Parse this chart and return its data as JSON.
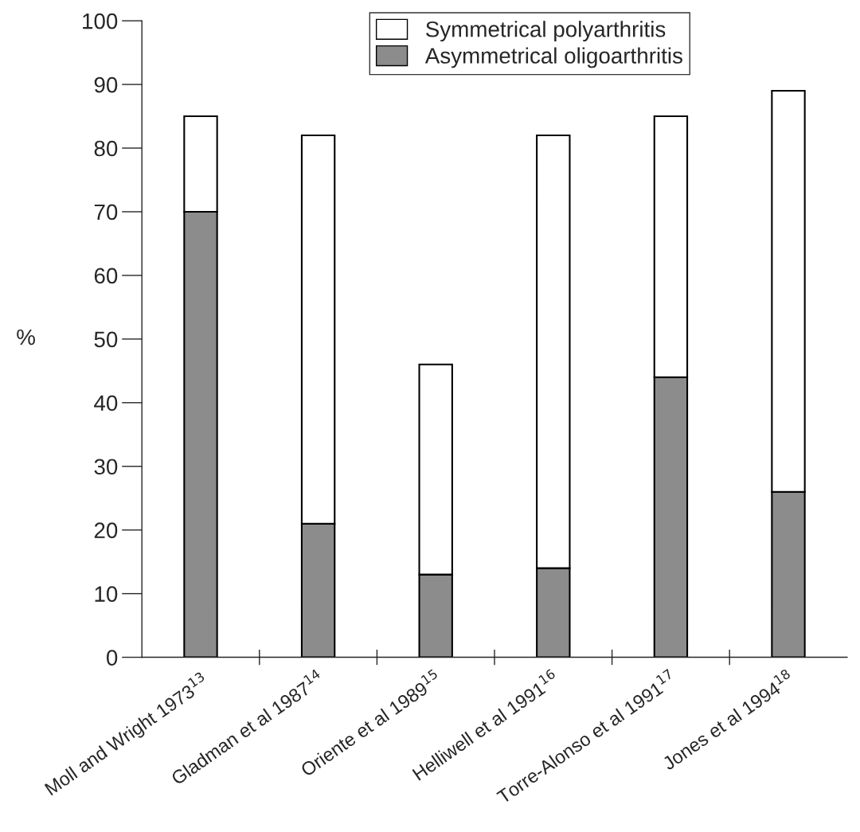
{
  "chart_data": {
    "type": "bar",
    "stacked": true,
    "ylabel": "%",
    "categories": [
      "Moll and Wright 1973$^{13}$",
      "Gladman et al 1987$^{14}$",
      "Oriente et al 1989$^{15}$",
      "Helliwell et al 1991$^{16}$",
      "Torre-Alonso et al 1991$^{17}$",
      "Jones et al 1994$^{18}$"
    ],
    "series": [
      {
        "name": "Asymmetrical oligoarthritis",
        "color": "#8c8c8c",
        "values": [
          70,
          21,
          13,
          14,
          44,
          26
        ]
      },
      {
        "name": "Symmetrical polyarthritis",
        "color": "#ffffff",
        "values": [
          15,
          61,
          33,
          68,
          41,
          63
        ]
      }
    ],
    "ylim": [
      0,
      100
    ],
    "yticks": [
      0,
      10,
      20,
      30,
      40,
      50,
      60,
      70,
      80,
      90,
      100
    ],
    "grid": false,
    "legend": "top"
  }
}
